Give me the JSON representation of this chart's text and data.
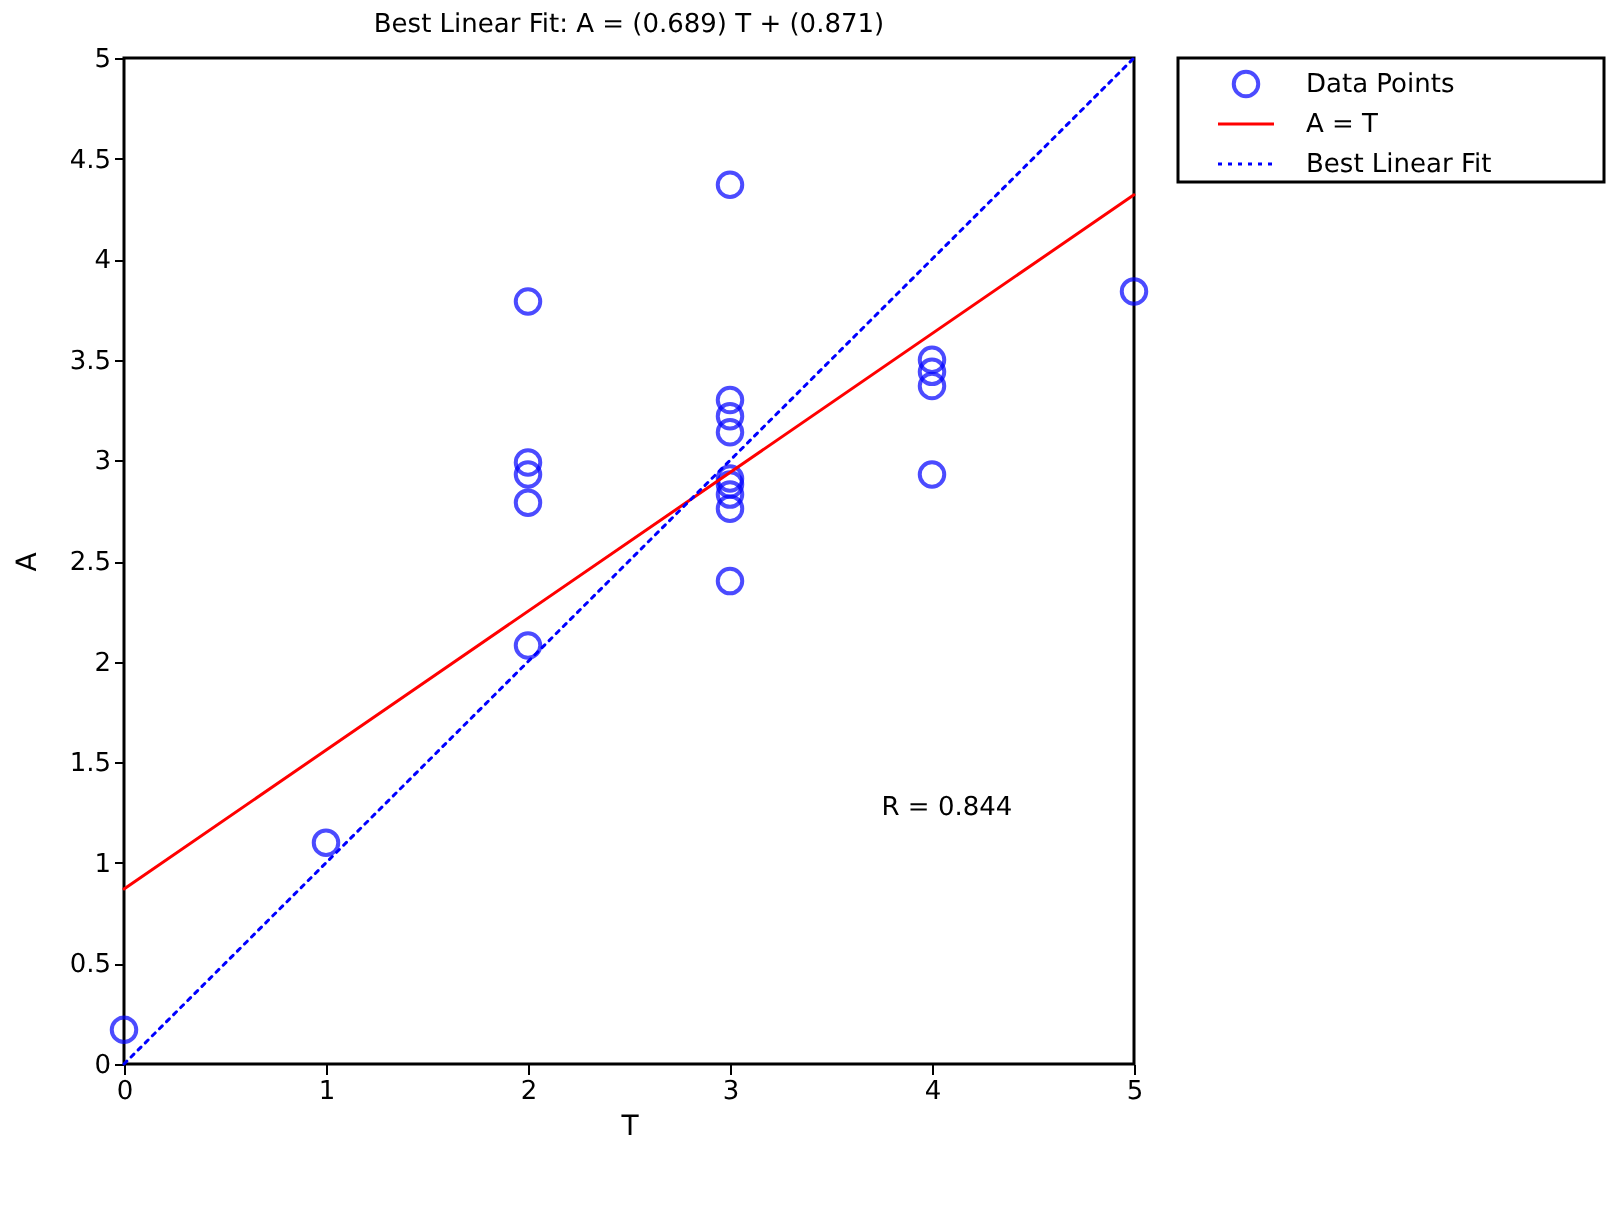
{
  "chart_data": {
    "type": "scatter",
    "title": "Best Linear Fit:  A = (0.689) T + (0.871)",
    "xlabel": "T",
    "ylabel": "A",
    "xlim": [
      0,
      5
    ],
    "ylim": [
      0,
      5
    ],
    "xticks": [
      0,
      1,
      2,
      3,
      4,
      5
    ],
    "yticks": [
      0,
      0.5,
      1,
      1.5,
      2,
      2.5,
      3,
      3.5,
      4,
      4.5,
      5
    ],
    "grid": false,
    "legend": "top right",
    "annotations": [
      "R = 0.844"
    ],
    "series": [
      {
        "name": "Data Points",
        "marker": "circle",
        "color": "#0000ff",
        "x": [
          0,
          1,
          2,
          2,
          2,
          2,
          2,
          3,
          3,
          3,
          3,
          3,
          3,
          3,
          3,
          3,
          4,
          4,
          4,
          4,
          5
        ],
        "values": [
          0.17,
          1.1,
          3.79,
          2.99,
          2.93,
          2.79,
          2.08,
          4.37,
          3.3,
          3.22,
          3.14,
          2.91,
          2.88,
          2.83,
          2.76,
          2.4,
          3.5,
          3.44,
          3.37,
          2.93,
          3.84
        ]
      },
      {
        "name": "A = T",
        "type": "line",
        "line_style": "solid",
        "color": "#ff0000",
        "x": [
          0,
          5
        ],
        "values": [
          0.87,
          4.32
        ]
      },
      {
        "name": "Best Linear Fit",
        "type": "line",
        "line_style": "dotted",
        "color": "#0000ff",
        "x": [
          0,
          5
        ],
        "values": [
          0,
          5
        ]
      }
    ]
  }
}
